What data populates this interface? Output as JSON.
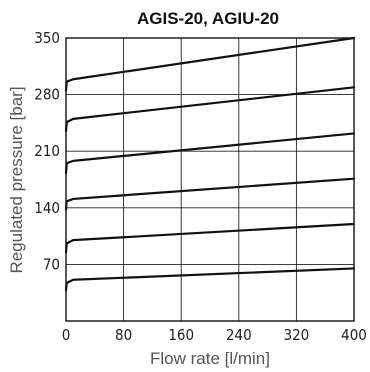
{
  "chart_data": {
    "type": "line",
    "title": "AGIS-20, AGIU-20",
    "xlabel": "Flow rate [l/min]",
    "ylabel": "Regulated pressure [bar]",
    "xlim": [
      0,
      400
    ],
    "ylim": [
      0,
      350
    ],
    "xticks": [
      "0",
      "80",
      "160",
      "240",
      "320",
      "400"
    ],
    "yticks": [
      "70",
      "140",
      "210",
      "280",
      "350"
    ],
    "grid": true,
    "series": [
      {
        "x": [
          0,
          1,
          10,
          400
        ],
        "values": [
          38,
          47,
          51,
          65
        ]
      },
      {
        "x": [
          0,
          1,
          10,
          400
        ],
        "values": [
          85,
          96,
          100,
          120
        ]
      },
      {
        "x": [
          0,
          1,
          10,
          400
        ],
        "values": [
          138,
          148,
          151,
          176
        ]
      },
      {
        "x": [
          0,
          1,
          10,
          400
        ],
        "values": [
          183,
          195,
          198,
          232
        ]
      },
      {
        "x": [
          0,
          1,
          10,
          400
        ],
        "values": [
          235,
          246,
          250,
          289
        ]
      },
      {
        "x": [
          0,
          1,
          10,
          400
        ],
        "values": [
          285,
          296,
          299,
          350
        ]
      }
    ]
  }
}
